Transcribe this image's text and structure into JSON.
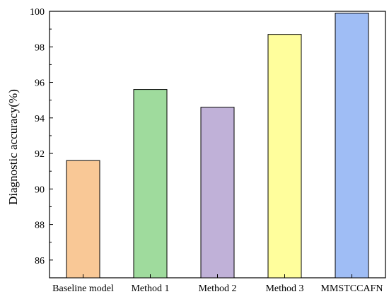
{
  "chart_data": {
    "type": "bar",
    "categories": [
      "Baseline model",
      "Method 1",
      "Method 2",
      "Method 3",
      "MMSTCCAFN"
    ],
    "values": [
      91.6,
      95.6,
      94.6,
      98.7,
      99.9
    ],
    "colors": [
      "#f9c896",
      "#9fdb9d",
      "#c0b1d8",
      "#fffe9c",
      "#9fbdf5"
    ],
    "title": "",
    "xlabel": "",
    "ylabel": "Diagnostic accuracy(%)",
    "ylim": [
      85,
      100
    ],
    "yticks": [
      86,
      88,
      90,
      92,
      94,
      96,
      98,
      100
    ],
    "grid": false,
    "legend": "none"
  }
}
